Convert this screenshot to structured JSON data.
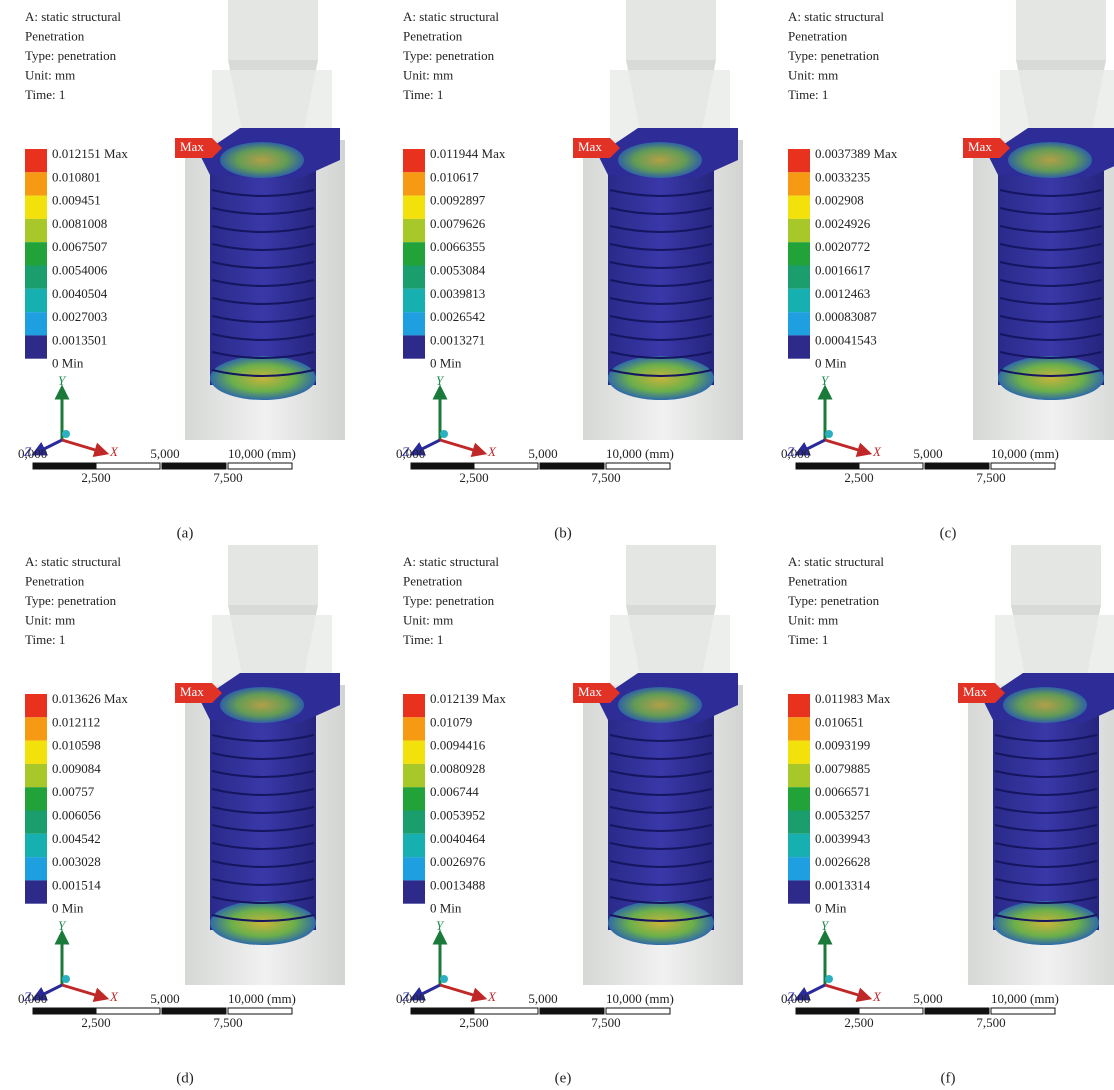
{
  "panels": [
    {
      "header": [
        "A: static structural",
        "Penetration",
        "Type: penetration",
        "Unit: mm",
        "Time: 1"
      ],
      "legend": [
        "0.012151 Max",
        "0.010801",
        "0.009451",
        "0.0081008",
        "0.0067507",
        "0.0054006",
        "0.0040504",
        "0.0027003",
        "0.0013501",
        "0 Min"
      ],
      "max_flag": "Max",
      "axes": {
        "y": "Y",
        "z": "Z",
        "x": "X"
      },
      "scale": {
        "top": [
          "0,000",
          "5,000",
          "10,000 (mm)"
        ],
        "bottom": [
          "2,500",
          "7,500"
        ]
      },
      "caption": "(a)"
    },
    {
      "header": [
        "A: static structural",
        "Penetration",
        "Type: penetration",
        "Unit: mm",
        "Time: 1"
      ],
      "legend": [
        "0.011944 Max",
        "0.010617",
        "0.0092897",
        "0.0079626",
        "0.0066355",
        "0.0053084",
        "0.0039813",
        "0.0026542",
        "0.0013271",
        "0 Min"
      ],
      "max_flag": "Max",
      "axes": {
        "y": "Y",
        "z": "Z",
        "x": "X"
      },
      "scale": {
        "top": [
          "0,000",
          "5,000",
          "10,000 (mm)"
        ],
        "bottom": [
          "2,500",
          "7,500"
        ]
      },
      "caption": "(b)"
    },
    {
      "header": [
        "A: static structural",
        "Penetration",
        "Type: penetration",
        "Unit: mm",
        "Time: 1"
      ],
      "legend": [
        "0.0037389 Max",
        "0.0033235",
        "0.002908",
        "0.0024926",
        "0.0020772",
        "0.0016617",
        "0.0012463",
        "0.00083087",
        "0.00041543",
        "0 Min"
      ],
      "max_flag": "Max",
      "axes": {
        "y": "Y",
        "z": "Z",
        "x": "X"
      },
      "scale": {
        "top": [
          "0,000",
          "5,000",
          "10,000 (mm)"
        ],
        "bottom": [
          "2,500",
          "7,500"
        ]
      },
      "caption": "(c)"
    },
    {
      "header": [
        "A: static structural",
        "Penetration",
        "Type: penetration",
        "Unit: mm",
        "Time: 1"
      ],
      "legend": [
        "0.013626 Max",
        "0.012112",
        "0.010598",
        "0.009084",
        "0.00757",
        "0.006056",
        "0.004542",
        "0.003028",
        "0.001514",
        "0 Min"
      ],
      "max_flag": "Max",
      "axes": {
        "y": "Y",
        "z": "Z",
        "x": "X"
      },
      "scale": {
        "top": [
          "0,000",
          "5,000",
          "10,000 (mm)"
        ],
        "bottom": [
          "2,500",
          "7,500"
        ]
      },
      "caption": "(d)"
    },
    {
      "header": [
        "A: static structural",
        "Penetration",
        "Type: penetration",
        "Unit: mm",
        "Time: 1"
      ],
      "legend": [
        "0.012139 Max",
        "0.01079",
        "0.0094416",
        "0.0080928",
        "0.006744",
        "0.0053952",
        "0.0040464",
        "0.0026976",
        "0.0013488",
        "0 Min"
      ],
      "max_flag": "Max",
      "axes": {
        "y": "Y",
        "z": "Z",
        "x": "X"
      },
      "scale": {
        "top": [
          "0,000",
          "5,000",
          "10,000 (mm)"
        ],
        "bottom": [
          "2,500",
          "7,500"
        ]
      },
      "caption": "(e)"
    },
    {
      "header": [
        "A: static structural",
        "Penetration",
        "Type: penetration",
        "Unit: mm",
        "Time: 1"
      ],
      "legend": [
        "0.011983 Max",
        "0.010651",
        "0.0093199",
        "0.0079885",
        "0.0066571",
        "0.0053257",
        "0.0039943",
        "0.0026628",
        "0.0013314",
        "0 Min"
      ],
      "max_flag": "Max",
      "axes": {
        "y": "Y",
        "z": "Z",
        "x": "X"
      },
      "scale": {
        "top": [
          "0,000",
          "5,000",
          "10,000 (mm)"
        ],
        "bottom": [
          "2,500",
          "7,500"
        ]
      },
      "caption": "(f)"
    }
  ]
}
